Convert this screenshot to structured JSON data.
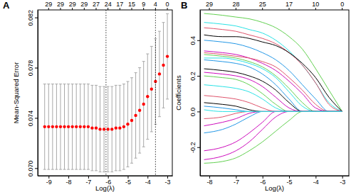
{
  "chart_data": [
    {
      "type": "scatter",
      "title": "A",
      "x_label": "Log(λ)",
      "y_label": "Mean-Squared Error",
      "marker": "circle",
      "color": "#ff0000",
      "x": [
        -9.2,
        -9.0,
        -8.8,
        -8.6,
        -8.4,
        -8.2,
        -8.0,
        -7.8,
        -7.6,
        -7.4,
        -7.2,
        -7.0,
        -6.8,
        -6.6,
        -6.4,
        -6.2,
        -6.0,
        -5.8,
        -5.6,
        -5.4,
        -5.2,
        -5.0,
        -4.8,
        -4.6,
        -4.4,
        -4.2,
        -4.0,
        -3.8,
        -3.6,
        -3.4,
        -3.2,
        -3.0
      ],
      "values": [
        0.0733,
        0.0733,
        0.0733,
        0.0733,
        0.0733,
        0.0733,
        0.0733,
        0.0733,
        0.0733,
        0.0733,
        0.0733,
        0.0733,
        0.0732,
        0.0732,
        0.0731,
        0.0731,
        0.0731,
        0.0731,
        0.0732,
        0.0732,
        0.0733,
        0.0735,
        0.0738,
        0.0742,
        0.0746,
        0.0751,
        0.0757,
        0.0763,
        0.0769,
        0.0775,
        0.0782,
        0.0789
      ],
      "errors": [
        0.0034,
        0.0034,
        0.0034,
        0.0034,
        0.0034,
        0.0034,
        0.0034,
        0.0034,
        0.0034,
        0.0034,
        0.0034,
        0.0034,
        0.0034,
        0.0034,
        0.0034,
        0.0034,
        0.0034,
        0.0034,
        0.0034,
        0.0034,
        0.0034,
        0.0034,
        0.0034,
        0.0034,
        0.0034,
        0.0034,
        0.0034,
        0.0034,
        0.0034,
        0.0034,
        0.0034,
        0.0034
      ],
      "vlines": [
        -6.1,
        -3.6
      ],
      "top_labels": {
        "x": [
          -9.0,
          -8.4,
          -7.8,
          -7.2,
          -6.6,
          -6.0,
          -5.4,
          -4.8,
          -4.2,
          -3.6,
          -3.0
        ],
        "counts": [
          29,
          29,
          29,
          29,
          27,
          24,
          17,
          15,
          9,
          4,
          0
        ]
      },
      "xlim": [
        -9.55,
        -2.75
      ],
      "xticks": [
        -9,
        -8,
        -7,
        -6,
        -5,
        -4,
        -3
      ],
      "ylim": [
        0.0694,
        0.0826
      ],
      "yticks": [
        {
          "value": 0.07,
          "label": "0.070"
        },
        0.074,
        0.078,
        0.082
      ]
    },
    {
      "type": "line",
      "title": "B",
      "x_label": "Log(λ)",
      "y_label": "Coefficients",
      "x": [
        -8.2,
        -7.5,
        -7.0,
        -6.5,
        -6.0,
        -5.5,
        -5.0,
        -4.5,
        -4.0,
        -3.5,
        -3.0
      ],
      "series": [
        {
          "color": "#61D04F",
          "values": [
            0.55,
            0.54,
            0.53,
            0.52,
            0.5,
            0.47,
            0.42,
            0.35,
            0.24,
            0.12,
            0.0
          ]
        },
        {
          "color": "#28E2E5",
          "values": [
            0.5,
            0.49,
            0.48,
            0.46,
            0.44,
            0.4,
            0.34,
            0.26,
            0.16,
            0.05,
            0.0
          ]
        },
        {
          "color": "#DF536B",
          "values": [
            0.47,
            0.46,
            0.45,
            0.43,
            0.41,
            0.38,
            0.33,
            0.26,
            0.16,
            0.04,
            0.0
          ]
        },
        {
          "color": "#000000",
          "values": [
            0.43,
            0.42,
            0.42,
            0.41,
            0.39,
            0.37,
            0.33,
            0.27,
            0.19,
            0.08,
            0.0
          ]
        },
        {
          "color": "#2297E6",
          "values": [
            0.4,
            0.39,
            0.38,
            0.36,
            0.33,
            0.29,
            0.23,
            0.15,
            0.07,
            0.0,
            0.0
          ]
        },
        {
          "color": "#CD0BBC",
          "values": [
            0.34,
            0.33,
            0.32,
            0.3,
            0.27,
            0.23,
            0.17,
            0.1,
            0.02,
            0.0,
            0.0
          ]
        },
        {
          "color": "#DF536B",
          "values": [
            0.33,
            0.32,
            0.31,
            0.3,
            0.28,
            0.25,
            0.19,
            0.12,
            0.04,
            0.0,
            0.0
          ]
        },
        {
          "color": "#61D04F",
          "values": [
            0.32,
            0.31,
            0.3,
            0.28,
            0.25,
            0.2,
            0.13,
            0.05,
            0.0,
            0.0,
            0.0
          ]
        },
        {
          "color": "#28E2E5",
          "values": [
            0.3,
            0.3,
            0.29,
            0.27,
            0.24,
            0.19,
            0.11,
            0.03,
            0.0,
            0.0,
            0.0
          ]
        },
        {
          "color": "#2297E6",
          "values": [
            0.29,
            0.28,
            0.27,
            0.25,
            0.21,
            0.15,
            0.07,
            0.0,
            0.0,
            0.0,
            0.0
          ]
        },
        {
          "color": "#000000",
          "values": [
            0.24,
            0.23,
            0.22,
            0.2,
            0.17,
            0.12,
            0.05,
            0.0,
            0.0,
            0.0,
            0.0
          ]
        },
        {
          "color": "#CD0BBC",
          "values": [
            0.22,
            0.21,
            0.2,
            0.18,
            0.14,
            0.08,
            0.02,
            0.0,
            0.0,
            0.0,
            0.0
          ]
        },
        {
          "color": "#61D04F",
          "values": [
            0.2,
            0.19,
            0.18,
            0.15,
            0.1,
            0.04,
            0.0,
            0.0,
            0.0,
            0.0,
            0.0
          ]
        },
        {
          "color": "#28E2E5",
          "values": [
            0.15,
            0.14,
            0.13,
            0.11,
            0.07,
            0.02,
            0.0,
            0.0,
            0.0,
            0.0,
            0.0
          ]
        },
        {
          "color": "#DF536B",
          "values": [
            0.09,
            0.08,
            0.07,
            0.05,
            0.02,
            0.0,
            0.0,
            0.0,
            0.0,
            0.0,
            0.0
          ]
        },
        {
          "color": "#000000",
          "values": [
            0.05,
            0.04,
            0.03,
            0.01,
            0.0,
            0.0,
            0.0,
            0.0,
            0.0,
            0.0,
            0.0
          ]
        },
        {
          "color": "#2297E6",
          "values": [
            0.03,
            0.02,
            0.01,
            0.0,
            0.0,
            0.0,
            0.0,
            0.0,
            0.0,
            0.0,
            0.0
          ]
        },
        {
          "color": "#61D04F",
          "values": [
            -0.29,
            -0.28,
            -0.26,
            -0.22,
            -0.17,
            -0.11,
            -0.05,
            0.0,
            0.0,
            0.0,
            0.0
          ]
        },
        {
          "color": "#CD0BBC",
          "values": [
            -0.27,
            -0.25,
            -0.22,
            -0.17,
            -0.1,
            -0.03,
            0.0,
            0.0,
            0.0,
            0.0,
            0.0
          ]
        },
        {
          "color": "#CD0BBC",
          "values": [
            -0.22,
            -0.2,
            -0.17,
            -0.12,
            -0.06,
            0.0,
            0.0,
            0.0,
            0.0,
            0.0,
            0.0
          ]
        },
        {
          "color": "#2297E6",
          "values": [
            -0.12,
            -0.1,
            -0.07,
            -0.03,
            0.0,
            0.0,
            0.0,
            0.0,
            0.0,
            0.0,
            0.0
          ]
        },
        {
          "color": "#CD0BBC",
          "values": [
            -0.08,
            -0.06,
            -0.04,
            -0.01,
            0.0,
            0.0,
            0.0,
            0.0,
            0.0,
            0.0,
            0.0
          ]
        },
        {
          "color": "#DF536B",
          "values": [
            -0.04,
            -0.03,
            -0.01,
            0.0,
            0.0,
            0.0,
            0.0,
            0.0,
            0.0,
            0.0,
            0.0
          ]
        },
        {
          "color": "#28E2E5",
          "values": [
            0.01,
            0.0,
            0.0,
            0.0,
            0.0,
            0.0,
            0.0,
            0.0,
            0.0,
            0.0,
            0.0
          ]
        }
      ],
      "top_labels": {
        "x": [
          -8,
          -7,
          -6,
          -5,
          -4,
          -3
        ],
        "counts": [
          29,
          28,
          25,
          17,
          10,
          0
        ]
      },
      "xlim": [
        -8.35,
        -2.75
      ],
      "xticks": [
        -8,
        -7,
        -6,
        -5,
        -4,
        -3
      ],
      "ylim": [
        -0.36,
        0.57
      ],
      "yticks": [
        -0.2,
        {
          "value": 0,
          "label": "0.0"
        },
        0.2,
        0.4
      ]
    }
  ]
}
